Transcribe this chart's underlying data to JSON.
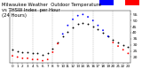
{
  "background_color": "#ffffff",
  "grid_color": "#aaaaaa",
  "hours": [
    0,
    1,
    2,
    3,
    4,
    5,
    6,
    7,
    8,
    9,
    10,
    11,
    12,
    13,
    14,
    15,
    16,
    17,
    18,
    19,
    20,
    21,
    22,
    23
  ],
  "temp_outdoor": [
    26,
    25,
    24,
    24,
    23,
    23,
    22,
    23,
    27,
    32,
    37,
    41,
    44,
    47,
    48,
    47,
    45,
    43,
    40,
    37,
    34,
    32,
    30,
    28
  ],
  "thsw_index": [
    21,
    20,
    19,
    19,
    18,
    18,
    17,
    18,
    24,
    31,
    39,
    46,
    51,
    54,
    55,
    53,
    50,
    46,
    42,
    37,
    32,
    29,
    26,
    23
  ],
  "temp_color": "#000000",
  "thsw_low_color": "#ff0000",
  "thsw_high_color": "#0000ff",
  "ylim": [
    15,
    58
  ],
  "ytick_values": [
    20,
    25,
    30,
    35,
    40,
    45,
    50,
    55
  ],
  "ylabel_fontsize": 3.2,
  "xlabel_fontsize": 3.0,
  "marker_size": 1.8,
  "title_text": "Milwaukee Weather Outdoor Temperature vs THSW Index per Hour (24 Hours)",
  "title_fontsize": 3.8,
  "legend_blue_color": "#0000ff",
  "legend_red_color": "#ff0000",
  "vgrid_every": 4
}
